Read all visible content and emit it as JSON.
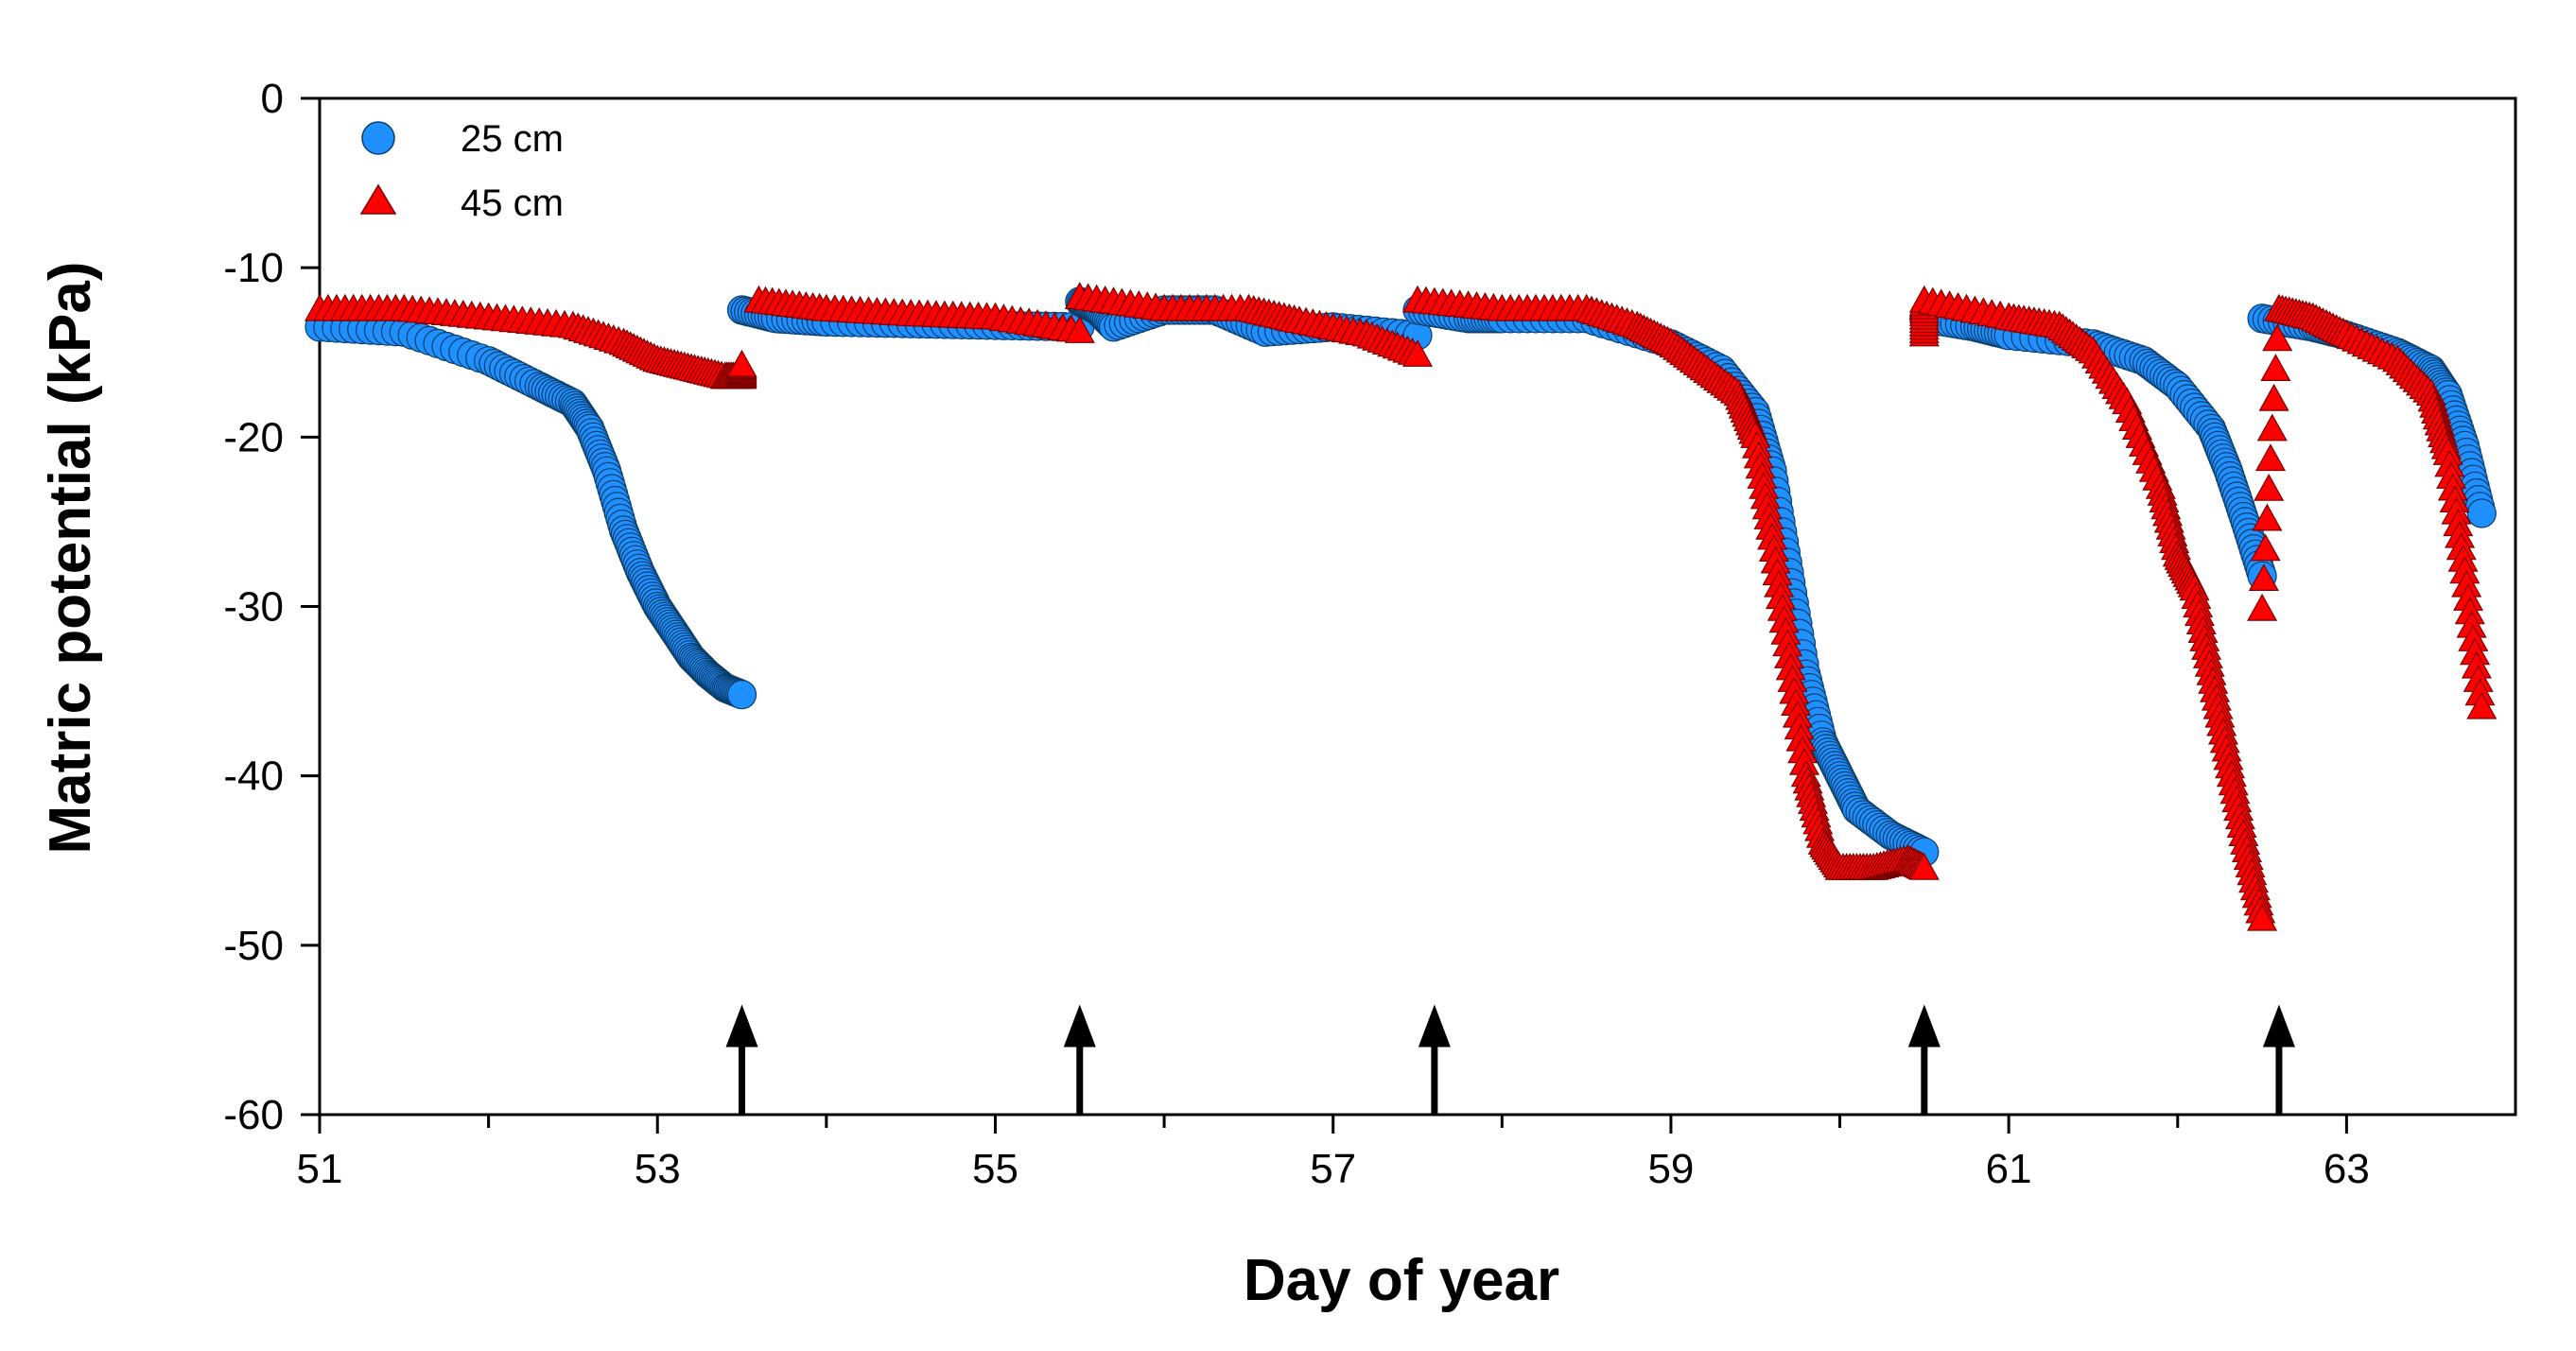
{
  "chart_data": {
    "type": "scatter",
    "title": "",
    "xlabel": "Day of year",
    "ylabel": "Matric potential (kPa)",
    "xlim": [
      51,
      64
    ],
    "ylim": [
      -60,
      0
    ],
    "xticks": [
      51,
      53,
      55,
      57,
      59,
      61,
      63
    ],
    "xticks_minor": [
      52,
      54,
      56,
      58,
      60,
      62
    ],
    "yticks": [
      0,
      -10,
      -20,
      -30,
      -40,
      -50,
      -60
    ],
    "legend": {
      "placement": "top-left",
      "entries": [
        {
          "label": "25 cm",
          "marker": "circle",
          "color": "#1E90FF"
        },
        {
          "label": "45 cm",
          "marker": "triangle",
          "color": "#FF0000"
        }
      ]
    },
    "arrows": {
      "description": "upward arrows marking events",
      "x": [
        53.5,
        55.5,
        57.6,
        60.5,
        62.6
      ],
      "from_y": -60,
      "to_y": -53.5
    },
    "series": [
      {
        "name": "25 cm",
        "marker": "circle",
        "color": "#1E90FF",
        "segments": [
          {
            "x": [
              51.0,
              51.5,
              52.0,
              52.3,
              52.5,
              52.6,
              52.7,
              52.8,
              52.9,
              53.0,
              53.1,
              53.2,
              53.3,
              53.4,
              53.5
            ],
            "y": [
              -13.5,
              -13.8,
              -15.5,
              -17.0,
              -18.0,
              -19.5,
              -22.0,
              -25.5,
              -28.0,
              -30.0,
              -31.5,
              -33.0,
              -34.0,
              -34.8,
              -35.2
            ]
          },
          {
            "x": [
              53.5,
              53.7,
              54.0,
              54.5,
              55.0,
              55.5
            ],
            "y": [
              -12.5,
              -13.0,
              -13.2,
              -13.3,
              -13.4,
              -13.5
            ]
          },
          {
            "x": [
              55.5,
              55.6,
              55.7,
              56.0,
              56.3,
              56.6,
              57.0,
              57.5
            ],
            "y": [
              -12.0,
              -12.5,
              -13.5,
              -12.5,
              -12.5,
              -13.8,
              -13.5,
              -14.0
            ]
          },
          {
            "x": [
              57.5,
              57.8,
              58.0,
              58.5,
              59.0,
              59.3,
              59.5,
              59.6,
              59.7,
              59.8,
              59.9,
              60.0,
              60.1,
              60.3,
              60.5
            ],
            "y": [
              -12.5,
              -13.0,
              -13.0,
              -13.0,
              -14.5,
              -16.0,
              -18.5,
              -22.0,
              -28.0,
              -34.0,
              -38.0,
              -40.0,
              -42.0,
              -43.5,
              -44.5
            ]
          },
          {
            "x": [
              60.5,
              60.8,
              61.0,
              61.5,
              61.8,
              62.0,
              62.2,
              62.3,
              62.4,
              62.5
            ],
            "y": [
              -13.0,
              -13.5,
              -14.0,
              -14.5,
              -15.5,
              -17.0,
              -19.5,
              -22.0,
              -25.0,
              -28.2
            ]
          },
          {
            "x": [
              62.5,
              62.8,
              63.0,
              63.3,
              63.5,
              63.6,
              63.7,
              63.8
            ],
            "y": [
              -13.0,
              -13.5,
              -14.0,
              -15.0,
              -16.0,
              -17.5,
              -20.5,
              -24.5
            ]
          }
        ]
      },
      {
        "name": "45 cm",
        "marker": "triangle",
        "color": "#FF0000",
        "segments": [
          {
            "x": [
              51.0,
              51.5,
              52.0,
              52.5,
              52.8,
              53.0,
              53.2,
              53.4,
              53.5,
              53.5
            ],
            "y": [
              -12.5,
              -12.5,
              -13.0,
              -13.5,
              -14.5,
              -15.5,
              -16.0,
              -16.5,
              -16.5,
              -15.8
            ]
          },
          {
            "x": [
              53.6,
              54.0,
              54.5,
              55.0,
              55.5
            ],
            "y": [
              -12.0,
              -12.5,
              -12.8,
              -13.0,
              -13.8
            ]
          },
          {
            "x": [
              55.5,
              56.0,
              56.5,
              56.8,
              57.2,
              57.5
            ],
            "y": [
              -11.8,
              -12.5,
              -12.5,
              -13.2,
              -14.0,
              -15.2
            ]
          },
          {
            "x": [
              57.5,
              58.0,
              58.5,
              58.8,
              59.0,
              59.2,
              59.4,
              59.5,
              59.6,
              59.7,
              59.8,
              59.9,
              60.0,
              60.2,
              60.4,
              60.5
            ],
            "y": [
              -12.0,
              -12.5,
              -12.5,
              -13.5,
              -14.5,
              -16.0,
              -17.5,
              -20.0,
              -26.0,
              -33.0,
              -40.0,
              -44.0,
              -45.5,
              -45.5,
              -45.0,
              -45.5
            ]
          },
          {
            "x": [
              60.5,
              60.5,
              61.0,
              61.3,
              61.5,
              61.7,
              61.9,
              62.0,
              62.1,
              62.2,
              62.3,
              62.4,
              62.5
            ],
            "y": [
              -14.0,
              -12.0,
              -13.0,
              -13.5,
              -15.0,
              -18.0,
              -23.0,
              -27.0,
              -29.0,
              -34.0,
              -39.0,
              -44.0,
              -48.5
            ]
          },
          {
            "x": [
              62.5,
              62.6,
              62.8,
              63.0,
              63.3,
              63.5,
              63.6,
              63.7,
              63.8
            ],
            "y": [
              -30.2,
              -12.5,
              -13.0,
              -14.0,
              -15.5,
              -17.5,
              -21.0,
              -28.0,
              -36.0
            ]
          }
        ]
      }
    ]
  }
}
